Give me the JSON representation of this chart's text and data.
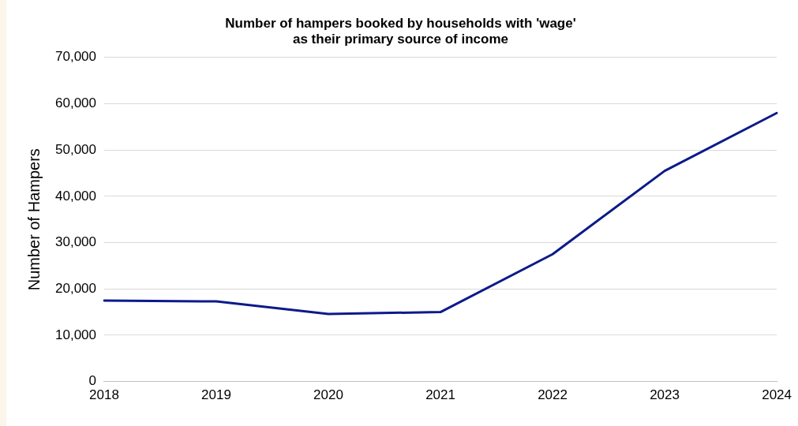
{
  "chart_data": {
    "type": "line",
    "title": "Number of hampers booked by households with 'wage'\nas their primary source of income",
    "ylabel": "Number of Hampers",
    "categories": [
      "2018",
      "2019",
      "2020",
      "2021",
      "2022",
      "2023",
      "2024"
    ],
    "series": [
      {
        "color": "#0c1a8a",
        "values": [
          17500,
          17300,
          14600,
          15000,
          27500,
          45500,
          58000
        ]
      }
    ],
    "ylim": [
      0,
      70000
    ],
    "yticks": [
      0,
      {
        "value": 10000,
        "label": "10,000"
      },
      {
        "value": 20000,
        "label": "20,000"
      },
      {
        "value": 30000,
        "label": "30,000"
      },
      {
        "value": 40000,
        "label": "40,000"
      },
      {
        "value": 50000,
        "label": "50,000"
      },
      {
        "value": 60000,
        "label": "60,000"
      },
      {
        "value": 70000,
        "label": "70,000"
      }
    ],
    "grid": "y",
    "legend": false,
    "marker": "none",
    "line_style": "solid"
  }
}
